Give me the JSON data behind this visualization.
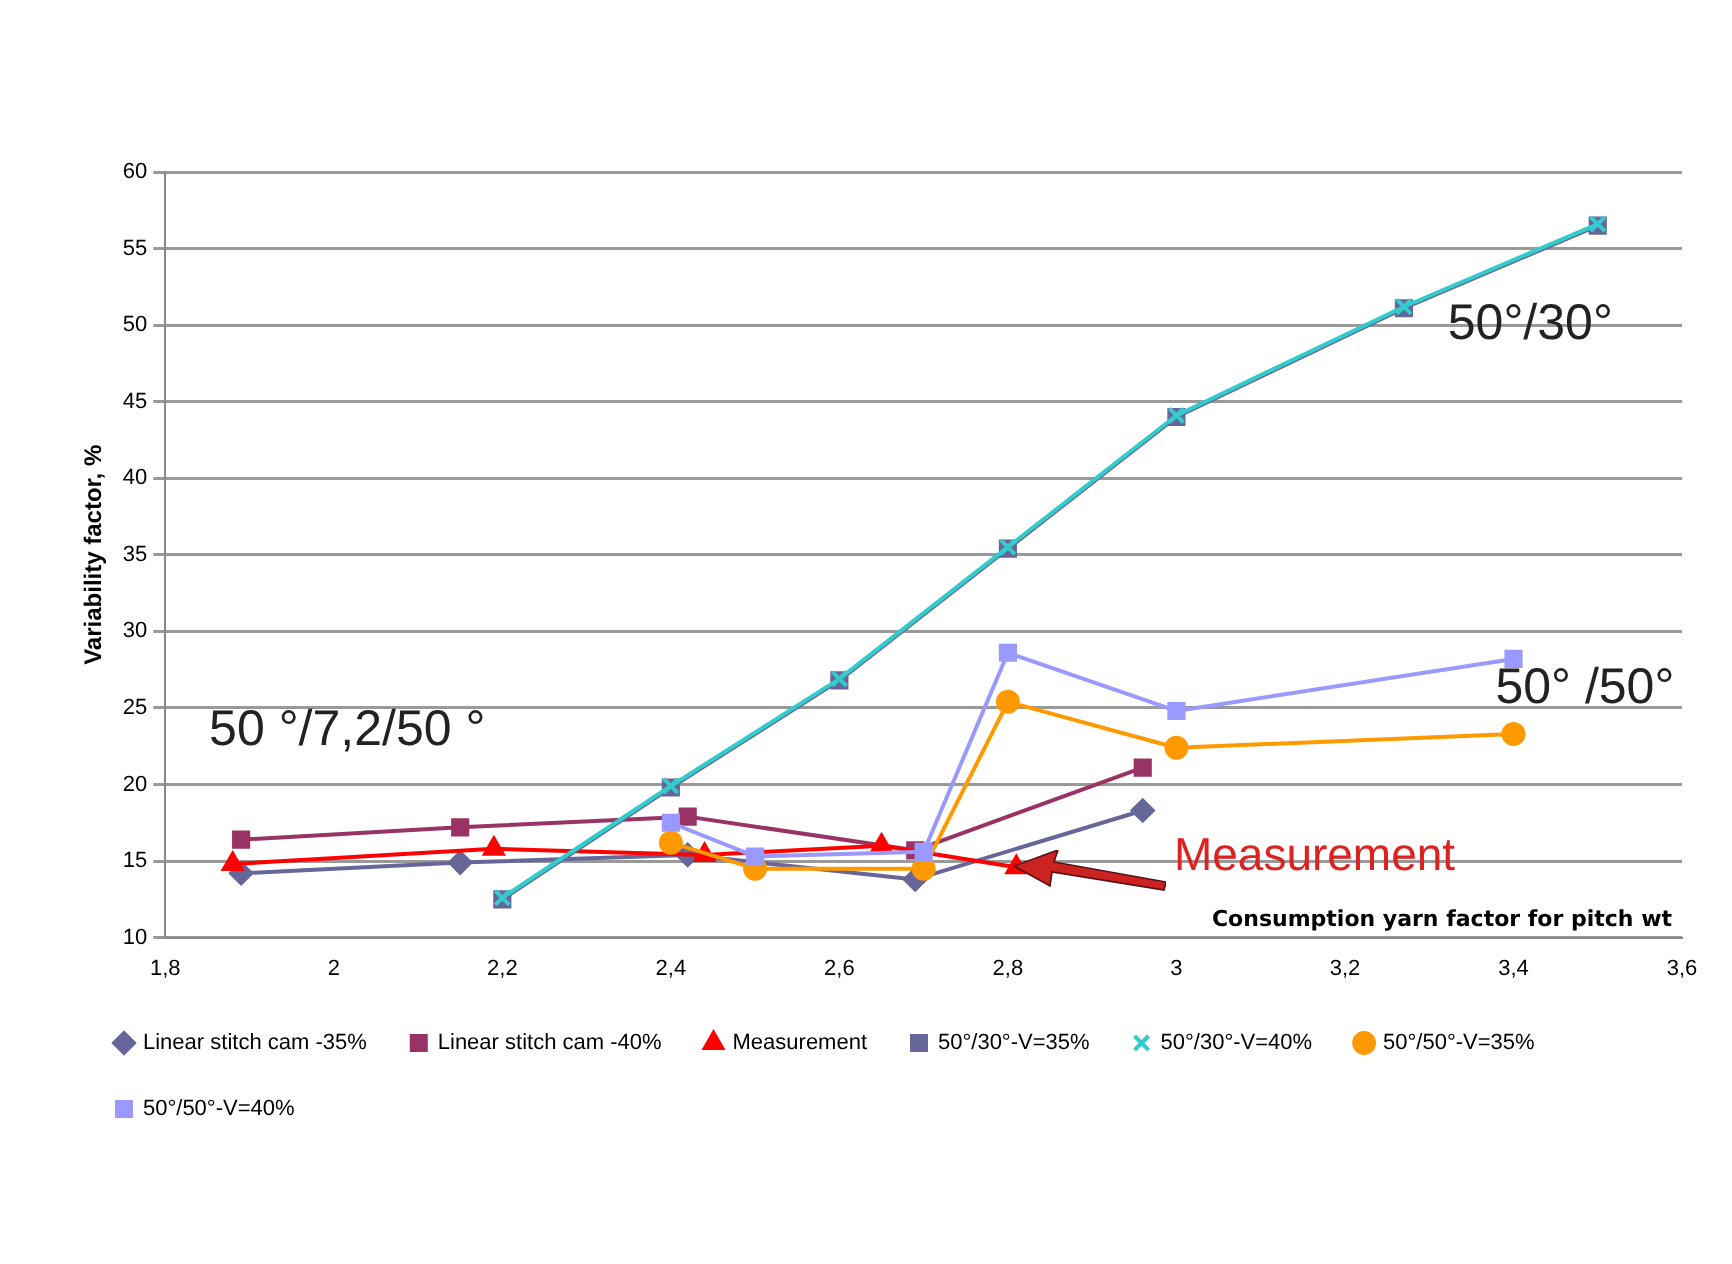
{
  "chart_data": {
    "type": "line",
    "xlabel": "Consumption yarn factor for pitch wt",
    "ylabel": "Variability factor, %",
    "xlim": [
      1.8,
      3.6
    ],
    "xticks": [
      {
        "value": 1.8,
        "label": "1,8"
      },
      2,
      {
        "value": 2.2,
        "label": "2,2"
      },
      {
        "value": 2.4,
        "label": "2,4"
      },
      {
        "value": 2.6,
        "label": "2,6"
      },
      {
        "value": 2.8,
        "label": "2,8"
      },
      3,
      {
        "value": 3.2,
        "label": "3,2"
      },
      {
        "value": 3.4,
        "label": "3,4"
      },
      {
        "value": 3.6,
        "label": "3,6"
      }
    ],
    "ylim": [
      10,
      60
    ],
    "yticks": [
      10,
      15,
      20,
      25,
      30,
      35,
      40,
      45,
      50,
      55,
      60
    ],
    "grid": "y",
    "legend": "bottom",
    "series": [
      {
        "name": "Linear stitch cam -35%",
        "color": "#666699",
        "marker": "diamond",
        "x": [
          1.89,
          2.15,
          2.42,
          2.69,
          2.96
        ],
        "values": [
          14.2,
          14.9,
          15.4,
          13.8,
          18.3
        ]
      },
      {
        "name": "Linear stitch cam -40%",
        "color": "#993366",
        "marker": "square",
        "x": [
          1.89,
          2.15,
          2.42,
          2.69,
          2.96
        ],
        "values": [
          16.4,
          17.2,
          17.9,
          15.7,
          21.1
        ]
      },
      {
        "name": "Measurement",
        "color": "#ff0000",
        "marker": "triangle",
        "x": [
          1.88,
          2.19,
          2.44,
          2.65,
          2.81
        ],
        "values": [
          14.8,
          15.8,
          15.4,
          16.0,
          14.6
        ]
      },
      {
        "name": "50°/30°-V=35%",
        "color": "#666699",
        "marker": "square",
        "x": [
          2.2,
          2.4,
          2.6,
          2.8,
          3.0,
          3.27,
          3.5
        ],
        "values": [
          12.5,
          19.8,
          26.8,
          35.4,
          44.0,
          51.1,
          56.5
        ]
      },
      {
        "name": "50°/30°-V=40%",
        "color": "#33cccc",
        "marker": "cross",
        "x": [
          2.2,
          2.4,
          2.6,
          2.8,
          3.0,
          3.27,
          3.5
        ],
        "values": [
          12.6,
          19.9,
          26.9,
          35.5,
          44.1,
          51.2,
          56.6
        ]
      },
      {
        "name": "50°/50°-V=35%",
        "color": "#ff9900",
        "marker": "circle",
        "x": [
          2.4,
          2.5,
          2.7,
          2.8,
          3.0,
          3.4
        ],
        "values": [
          16.2,
          14.5,
          14.5,
          25.4,
          22.4,
          23.3
        ]
      },
      {
        "name": "50°/50°-V=40%",
        "color": "#9999ff",
        "marker": "square",
        "x": [
          2.4,
          2.5,
          2.7,
          2.8,
          3.0,
          3.4
        ],
        "values": [
          17.5,
          15.3,
          15.6,
          28.6,
          24.8,
          28.2
        ]
      }
    ],
    "annotations": [
      "50°/30°",
      "50° /50°",
      "50 °/7,2/50 °",
      "Measurement"
    ]
  }
}
